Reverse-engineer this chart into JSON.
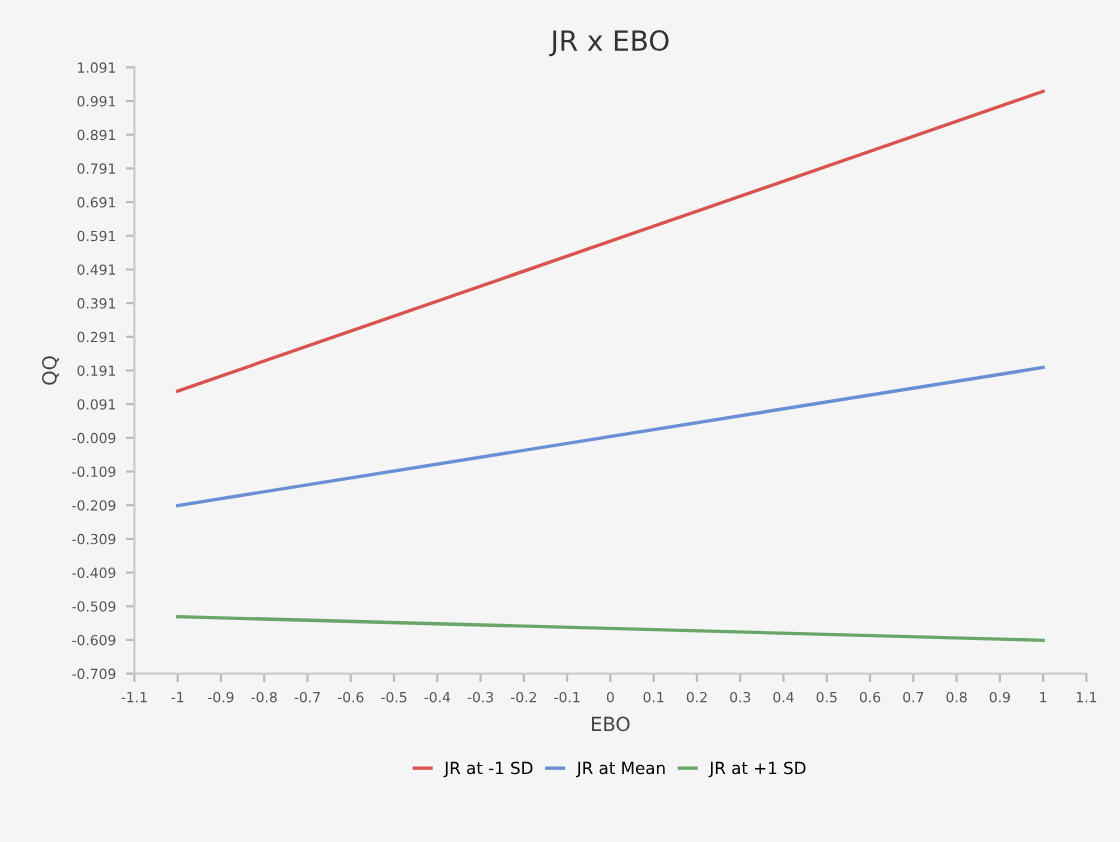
{
  "chart_data": {
    "type": "line",
    "title": "JR x EBO",
    "xlabel": "EBO",
    "ylabel": "QQ",
    "x": [
      -1,
      1
    ],
    "series": [
      {
        "name": "JR at -1 SD",
        "color": "#d9534f",
        "values": [
          0.13,
          1.02
        ]
      },
      {
        "name": "JR at Mean",
        "color": "#6b8fd6",
        "values": [
          -0.21,
          0.2
        ]
      },
      {
        "name": "JR at +1 SD",
        "color": "#6aa56a",
        "values": [
          -0.54,
          -0.61
        ]
      }
    ],
    "xlim": [
      -1.1,
      1.1
    ],
    "xticks": [
      -1.1,
      -1,
      -0.9,
      -0.8,
      -0.7,
      -0.6,
      -0.5,
      -0.4,
      -0.3,
      -0.2,
      -0.1,
      0,
      0.1,
      0.2,
      0.3,
      0.4,
      0.5,
      0.6,
      0.7,
      0.8,
      0.9,
      1,
      1.1
    ],
    "ylim": [
      -0.709,
      1.091
    ],
    "yticks": [
      -0.709,
      -0.609,
      -0.509,
      -0.409,
      -0.309,
      -0.209,
      -0.109,
      -0.009,
      0.091,
      0.191,
      0.291,
      0.391,
      0.491,
      0.591,
      0.691,
      0.791,
      0.891,
      0.991,
      1.091
    ],
    "grid": false,
    "legend": "bottom",
    "marker": "none",
    "line_style": "solid"
  }
}
